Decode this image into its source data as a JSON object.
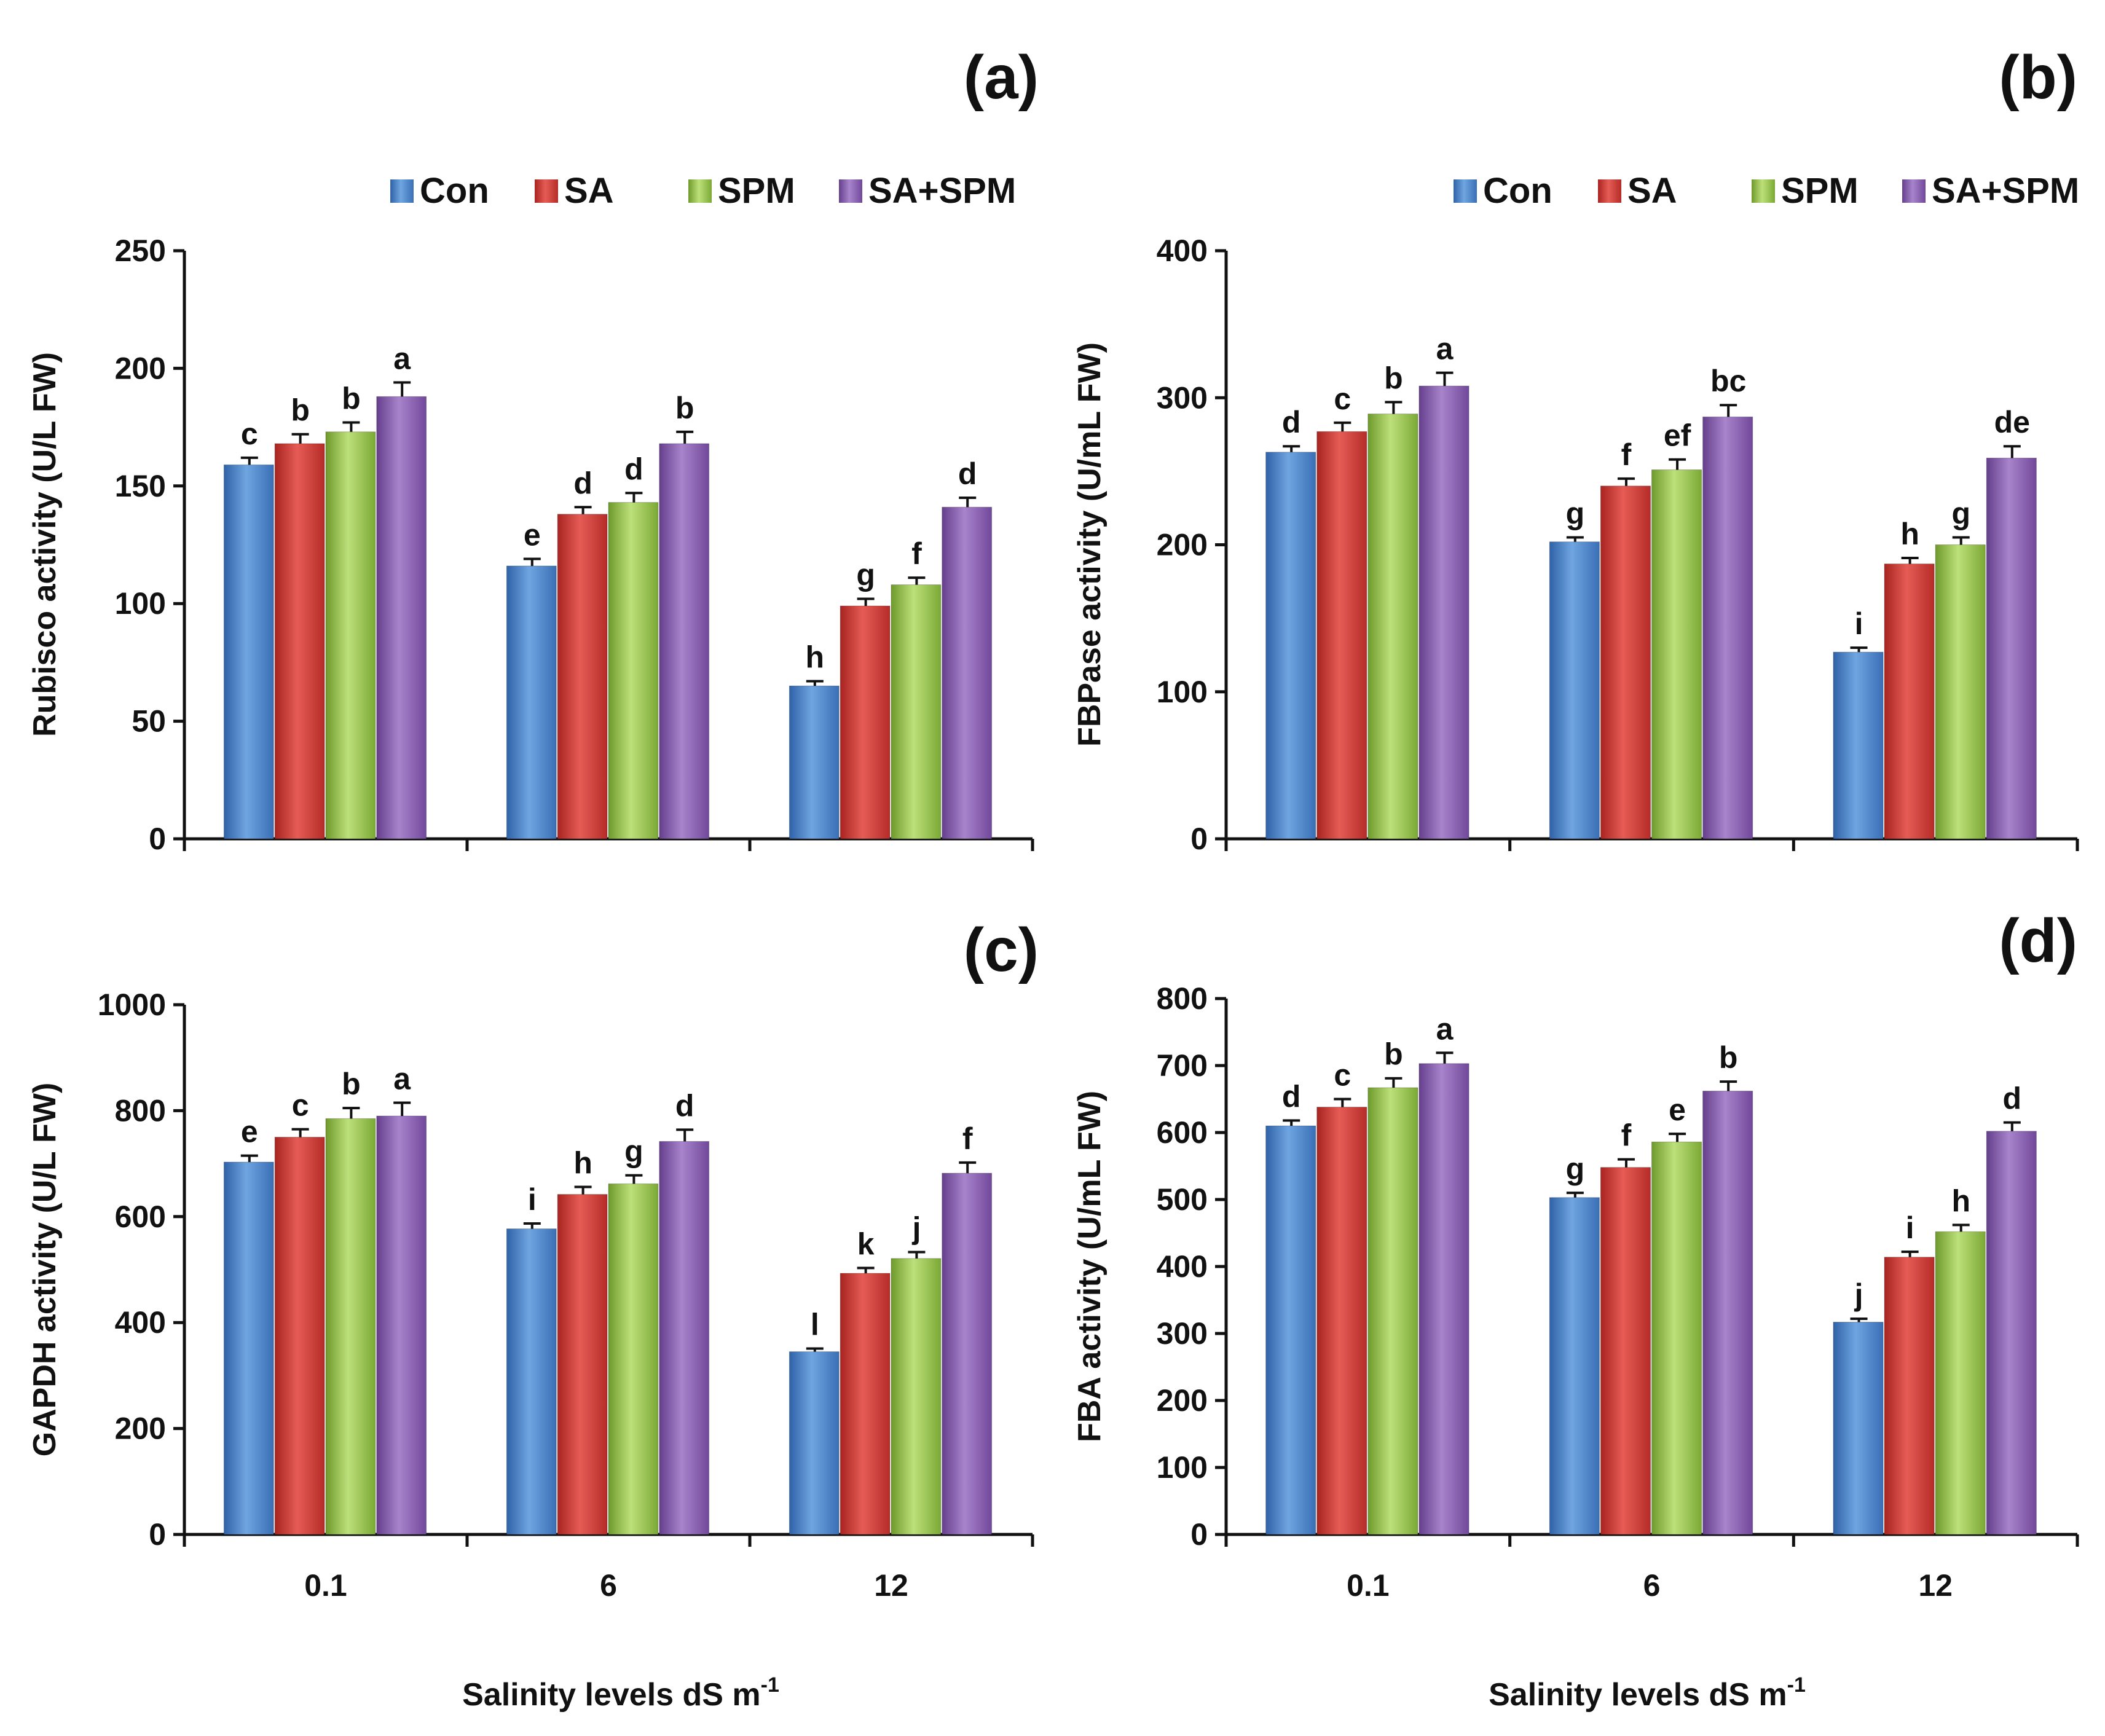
{
  "chart_data": [
    {
      "type": "bar",
      "panel_label": "(a)",
      "ylabel": "Rubisco activity (U/L FW)",
      "ylim": [
        0,
        250
      ],
      "yticks": [
        0,
        50,
        100,
        150,
        200,
        250
      ],
      "categories": [
        "0.1",
        "6",
        "12"
      ],
      "show_xticklabels": false,
      "series": [
        {
          "name": "Con",
          "values": [
            159,
            116,
            65
          ],
          "errors": [
            3,
            3,
            2
          ],
          "letters": [
            "c",
            "e",
            "h"
          ]
        },
        {
          "name": "SA",
          "values": [
            168,
            138,
            99
          ],
          "errors": [
            4,
            3,
            3
          ],
          "letters": [
            "b",
            "d",
            "g"
          ]
        },
        {
          "name": "SPM",
          "values": [
            173,
            143,
            108
          ],
          "errors": [
            4,
            4,
            3
          ],
          "letters": [
            "b",
            "d",
            "f"
          ]
        },
        {
          "name": "SA+SPM",
          "values": [
            188,
            168,
            141
          ],
          "errors": [
            6,
            5,
            4
          ],
          "letters": [
            "a",
            "b",
            "d"
          ]
        }
      ]
    },
    {
      "type": "bar",
      "panel_label": "(b)",
      "ylabel": "FBPase activity (U/mL FW)",
      "ylim": [
        0,
        400
      ],
      "yticks": [
        0,
        100,
        200,
        300,
        400
      ],
      "categories": [
        "0.1",
        "6",
        "12"
      ],
      "show_xticklabels": false,
      "series": [
        {
          "name": "Con",
          "values": [
            263,
            202,
            127
          ],
          "errors": [
            4,
            3,
            3
          ],
          "letters": [
            "d",
            "g",
            "i"
          ]
        },
        {
          "name": "SA",
          "values": [
            277,
            240,
            187
          ],
          "errors": [
            6,
            5,
            4
          ],
          "letters": [
            "c",
            "f",
            "h"
          ]
        },
        {
          "name": "SPM",
          "values": [
            289,
            251,
            200
          ],
          "errors": [
            8,
            7,
            5
          ],
          "letters": [
            "b",
            "ef",
            "g"
          ]
        },
        {
          "name": "SA+SPM",
          "values": [
            308,
            287,
            259
          ],
          "errors": [
            9,
            8,
            8
          ],
          "letters": [
            "a",
            "bc",
            "de"
          ]
        }
      ]
    },
    {
      "type": "bar",
      "panel_label": "(c)",
      "ylabel": "GAPDH activity (U/L FW)",
      "ylim": [
        0,
        1000
      ],
      "yticks": [
        0,
        200,
        400,
        600,
        800,
        1000
      ],
      "categories": [
        "0.1",
        "6",
        "12"
      ],
      "show_xticklabels": true,
      "series": [
        {
          "name": "Con",
          "values": [
            703,
            577,
            345
          ],
          "errors": [
            12,
            10,
            6
          ],
          "letters": [
            "e",
            "i",
            "l"
          ]
        },
        {
          "name": "SA",
          "values": [
            750,
            642,
            493
          ],
          "errors": [
            15,
            14,
            10
          ],
          "letters": [
            "c",
            "h",
            "k"
          ]
        },
        {
          "name": "SPM",
          "values": [
            785,
            662,
            521
          ],
          "errors": [
            20,
            16,
            12
          ],
          "letters": [
            "b",
            "g",
            "j"
          ]
        },
        {
          "name": "SA+SPM",
          "values": [
            790,
            742,
            682
          ],
          "errors": [
            25,
            22,
            20
          ],
          "letters": [
            "a",
            "d",
            "f"
          ]
        }
      ]
    },
    {
      "type": "bar",
      "panel_label": "(d)",
      "ylabel": "FBA activity (U/mL FW)",
      "ylim": [
        0,
        800
      ],
      "yticks": [
        0,
        100,
        200,
        300,
        400,
        500,
        600,
        700,
        800
      ],
      "categories": [
        "0.1",
        "6",
        "12"
      ],
      "show_xticklabels": true,
      "series": [
        {
          "name": "Con",
          "values": [
            610,
            503,
            317
          ],
          "errors": [
            8,
            7,
            5
          ],
          "letters": [
            "d",
            "g",
            "j"
          ]
        },
        {
          "name": "SA",
          "values": [
            638,
            548,
            414
          ],
          "errors": [
            12,
            12,
            8
          ],
          "letters": [
            "c",
            "f",
            "i"
          ]
        },
        {
          "name": "SPM",
          "values": [
            667,
            586,
            452
          ],
          "errors": [
            14,
            12,
            10
          ],
          "letters": [
            "b",
            "e",
            "h"
          ]
        },
        {
          "name": "SA+SPM",
          "values": [
            703,
            662,
            602
          ],
          "errors": [
            16,
            14,
            13
          ],
          "letters": [
            "a",
            "b",
            "d"
          ]
        }
      ]
    }
  ],
  "xlabel_prefix": "Salinity levels dS m",
  "xlabel_superscript": "-1",
  "legend": [
    "Con",
    "SA",
    "SPM",
    "SA+SPM"
  ],
  "colors": {
    "Con": "#4f86c9",
    "SA": "#d33b36",
    "SPM": "#98c94b",
    "SA+SPM": "#8a62b0"
  }
}
